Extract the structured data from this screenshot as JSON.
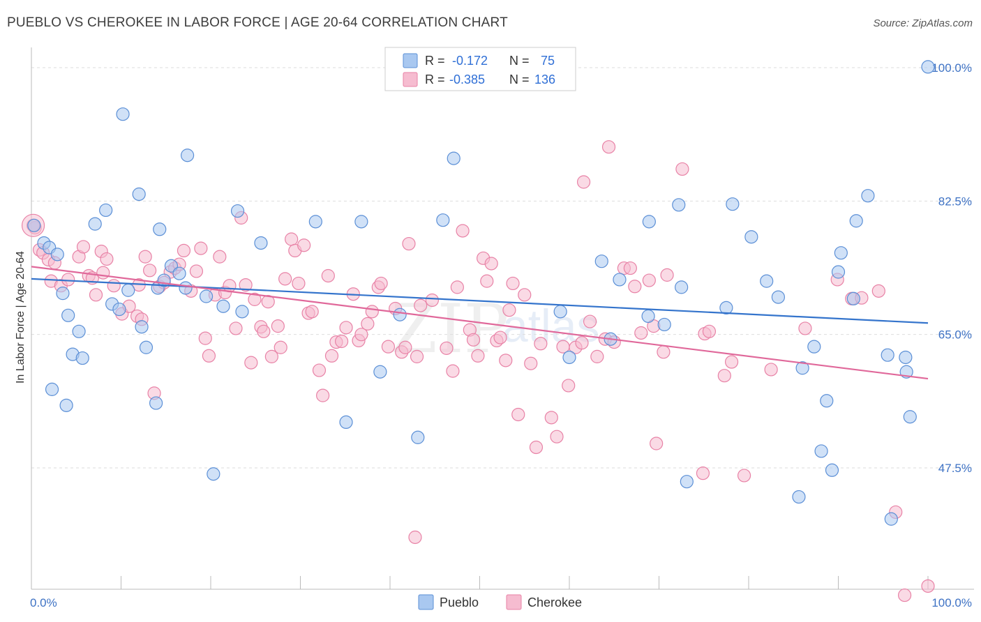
{
  "title": "PUEBLO VS CHEROKEE IN LABOR FORCE | AGE 20-64 CORRELATION CHART",
  "source": "Source: ZipAtlas.com",
  "watermark": {
    "zip": "ZIP",
    "atlas": "atlas"
  },
  "legend_box": {
    "rows": [
      {
        "r_label": "R =",
        "r_value": "-0.172",
        "n_label": "N =",
        "n_value": "75"
      },
      {
        "r_label": "R =",
        "r_value": "-0.385",
        "n_label": "N =",
        "n_value": "136"
      }
    ]
  },
  "bottom_legend": [
    "Pueblo",
    "Cherokee"
  ],
  "colors": {
    "pueblo_fill": "#a9c8f0",
    "pueblo_stroke": "#5b8fd6",
    "pueblo_line": "#3474cc",
    "cherokee_fill": "#f6bcd0",
    "cherokee_stroke": "#e882a6",
    "cherokee_line": "#e0689a",
    "grid": "#dddddd",
    "axis_text": "#3e72c4"
  },
  "chart_data": {
    "type": "scatter",
    "title": "PUEBLO VS CHEROKEE IN LABOR FORCE | AGE 20-64 CORRELATION CHART",
    "xlabel": "",
    "ylabel": "In Labor Force | Age 20-64",
    "xlim": [
      0,
      100
    ],
    "ylim": [
      30,
      102
    ],
    "x_tick_labels": [
      "0.0%",
      "100.0%"
    ],
    "y_ticks": [
      47.5,
      65.0,
      82.5,
      100.0
    ],
    "y_tick_labels": [
      "47.5%",
      "65.0%",
      "82.5%",
      "100.0%"
    ],
    "grid": "horizontal dashed",
    "legend_placement": "top-center",
    "series": [
      {
        "name": "Pueblo",
        "R": -0.172,
        "N": 75,
        "trend": {
          "x": [
            0,
            100
          ],
          "y": [
            72.3,
            66.5
          ]
        },
        "points": [
          [
            0.3,
            79.3
          ],
          [
            1.4,
            77.0
          ],
          [
            2.0,
            76.4
          ],
          [
            2.9,
            75.5
          ],
          [
            3.5,
            70.4
          ],
          [
            4.1,
            67.5
          ],
          [
            5.3,
            65.4
          ],
          [
            4.6,
            62.4
          ],
          [
            5.7,
            61.9
          ],
          [
            2.3,
            57.8
          ],
          [
            3.9,
            55.7
          ],
          [
            7.1,
            79.5
          ],
          [
            8.3,
            81.3
          ],
          [
            9.0,
            69.0
          ],
          [
            9.8,
            68.3
          ],
          [
            10.2,
            93.9
          ],
          [
            10.8,
            70.8
          ],
          [
            12.0,
            83.4
          ],
          [
            12.3,
            66.0
          ],
          [
            12.8,
            63.3
          ],
          [
            13.9,
            56.0
          ],
          [
            14.1,
            71.1
          ],
          [
            14.3,
            78.8
          ],
          [
            14.8,
            72.1
          ],
          [
            15.6,
            74.0
          ],
          [
            16.5,
            73.0
          ],
          [
            17.2,
            71.1
          ],
          [
            17.4,
            88.5
          ],
          [
            19.5,
            70.0
          ],
          [
            20.3,
            46.7
          ],
          [
            21.4,
            68.7
          ],
          [
            23.0,
            81.2
          ],
          [
            23.5,
            68.0
          ],
          [
            25.6,
            77.0
          ],
          [
            31.7,
            79.8
          ],
          [
            35.1,
            53.5
          ],
          [
            36.8,
            79.8
          ],
          [
            38.9,
            60.1
          ],
          [
            41.1,
            67.6
          ],
          [
            43.1,
            51.5
          ],
          [
            45.9,
            80.0
          ],
          [
            47.1,
            88.1
          ],
          [
            59.0,
            68.0
          ],
          [
            60.0,
            62.0
          ],
          [
            63.6,
            74.6
          ],
          [
            64.6,
            64.4
          ],
          [
            65.6,
            72.2
          ],
          [
            68.8,
            67.4
          ],
          [
            68.9,
            79.8
          ],
          [
            70.6,
            66.3
          ],
          [
            72.2,
            82.0
          ],
          [
            72.5,
            71.2
          ],
          [
            73.1,
            45.7
          ],
          [
            77.5,
            68.5
          ],
          [
            78.2,
            82.1
          ],
          [
            80.3,
            77.8
          ],
          [
            82.0,
            72.0
          ],
          [
            83.3,
            69.9
          ],
          [
            85.6,
            43.7
          ],
          [
            86.0,
            60.6
          ],
          [
            87.3,
            63.4
          ],
          [
            88.1,
            49.7
          ],
          [
            88.7,
            56.3
          ],
          [
            89.3,
            47.2
          ],
          [
            90.0,
            73.2
          ],
          [
            90.3,
            75.7
          ],
          [
            91.7,
            69.7
          ],
          [
            92.0,
            79.9
          ],
          [
            93.3,
            83.2
          ],
          [
            95.5,
            62.3
          ],
          [
            95.9,
            40.8
          ],
          [
            97.5,
            62.0
          ],
          [
            98.0,
            54.2
          ],
          [
            97.6,
            60.1
          ],
          [
            100.0,
            100.1
          ]
        ]
      },
      {
        "name": "Cherokee",
        "R": -0.385,
        "N": 136,
        "trend": {
          "x": [
            0,
            100
          ],
          "y": [
            73.9,
            59.2
          ]
        },
        "points": [
          [
            0.4,
            79.0
          ],
          [
            0.9,
            76.1
          ],
          [
            1.3,
            75.7
          ],
          [
            1.9,
            74.8
          ],
          [
            2.2,
            72.0
          ],
          [
            2.6,
            74.4
          ],
          [
            3.3,
            71.4
          ],
          [
            4.1,
            72.2
          ],
          [
            5.3,
            75.2
          ],
          [
            5.8,
            76.5
          ],
          [
            6.4,
            72.7
          ],
          [
            6.8,
            72.4
          ],
          [
            7.2,
            70.2
          ],
          [
            7.8,
            75.9
          ],
          [
            8.0,
            73.1
          ],
          [
            8.4,
            74.9
          ],
          [
            9.2,
            71.4
          ],
          [
            10.1,
            67.7
          ],
          [
            10.9,
            68.7
          ],
          [
            11.8,
            67.4
          ],
          [
            12.0,
            71.5
          ],
          [
            12.3,
            67.0
          ],
          [
            12.7,
            75.2
          ],
          [
            13.2,
            73.4
          ],
          [
            13.7,
            57.3
          ],
          [
            14.3,
            71.3
          ],
          [
            14.8,
            71.8
          ],
          [
            15.5,
            73.2
          ],
          [
            16.0,
            73.7
          ],
          [
            16.5,
            74.2
          ],
          [
            17.0,
            76.0
          ],
          [
            17.8,
            70.7
          ],
          [
            18.4,
            73.3
          ],
          [
            18.9,
            76.3
          ],
          [
            19.4,
            64.5
          ],
          [
            19.8,
            62.2
          ],
          [
            20.5,
            70.2
          ],
          [
            21.0,
            75.2
          ],
          [
            21.6,
            70.5
          ],
          [
            22.1,
            71.4
          ],
          [
            22.8,
            65.8
          ],
          [
            23.4,
            80.3
          ],
          [
            23.9,
            71.5
          ],
          [
            24.5,
            61.3
          ],
          [
            24.9,
            69.6
          ],
          [
            25.6,
            66.0
          ],
          [
            25.9,
            65.4
          ],
          [
            26.4,
            69.3
          ],
          [
            26.8,
            62.1
          ],
          [
            27.5,
            66.1
          ],
          [
            27.8,
            63.3
          ],
          [
            28.3,
            72.3
          ],
          [
            29.0,
            77.5
          ],
          [
            29.4,
            76.0
          ],
          [
            29.8,
            71.7
          ],
          [
            30.4,
            76.7
          ],
          [
            30.9,
            67.8
          ],
          [
            31.3,
            68.0
          ],
          [
            32.1,
            60.3
          ],
          [
            32.5,
            57.0
          ],
          [
            33.1,
            72.7
          ],
          [
            33.5,
            62.2
          ],
          [
            34.0,
            64.0
          ],
          [
            34.6,
            64.1
          ],
          [
            35.1,
            65.9
          ],
          [
            35.9,
            70.3
          ],
          [
            36.5,
            64.2
          ],
          [
            36.8,
            65.0
          ],
          [
            37.5,
            66.4
          ],
          [
            38.0,
            68.0
          ],
          [
            38.7,
            71.2
          ],
          [
            39.0,
            71.7
          ],
          [
            39.8,
            63.4
          ],
          [
            40.6,
            68.4
          ],
          [
            41.3,
            62.7
          ],
          [
            41.7,
            63.3
          ],
          [
            42.1,
            76.9
          ],
          [
            43.0,
            62.1
          ],
          [
            43.4,
            68.8
          ],
          [
            44.7,
            69.5
          ],
          [
            45.4,
            100.0
          ],
          [
            46.3,
            63.2
          ],
          [
            47.0,
            60.2
          ],
          [
            47.5,
            71.2
          ],
          [
            48.1,
            78.6
          ],
          [
            48.9,
            65.6
          ],
          [
            49.3,
            64.3
          ],
          [
            49.8,
            62.2
          ],
          [
            50.4,
            75.0
          ],
          [
            50.8,
            72.0
          ],
          [
            51.3,
            74.3
          ],
          [
            51.9,
            64.2
          ],
          [
            52.3,
            64.6
          ],
          [
            52.9,
            61.6
          ],
          [
            53.3,
            68.2
          ],
          [
            53.7,
            71.7
          ],
          [
            54.3,
            54.5
          ],
          [
            55.0,
            70.2
          ],
          [
            55.7,
            61.2
          ],
          [
            56.3,
            50.2
          ],
          [
            56.8,
            63.8
          ],
          [
            58.0,
            54.1
          ],
          [
            58.6,
            51.6
          ],
          [
            59.3,
            63.4
          ],
          [
            59.9,
            58.3
          ],
          [
            60.7,
            63.3
          ],
          [
            61.4,
            63.9
          ],
          [
            61.6,
            85.0
          ],
          [
            62.3,
            66.7
          ],
          [
            63.1,
            62.1
          ],
          [
            64.0,
            64.4
          ],
          [
            64.4,
            89.6
          ],
          [
            65.0,
            64.0
          ],
          [
            66.1,
            73.7
          ],
          [
            66.8,
            73.7
          ],
          [
            67.3,
            71.3
          ],
          [
            68.0,
            65.2
          ],
          [
            68.9,
            72.1
          ],
          [
            69.4,
            66.1
          ],
          [
            69.7,
            50.7
          ],
          [
            70.5,
            62.7
          ],
          [
            70.9,
            72.8
          ],
          [
            72.6,
            86.7
          ],
          [
            74.9,
            46.8
          ],
          [
            75.1,
            65.1
          ],
          [
            75.6,
            65.4
          ],
          [
            77.3,
            59.6
          ],
          [
            78.1,
            61.4
          ],
          [
            79.5,
            46.5
          ],
          [
            82.5,
            60.4
          ],
          [
            86.3,
            65.8
          ],
          [
            89.9,
            72.2
          ],
          [
            91.5,
            69.7
          ],
          [
            92.6,
            69.8
          ],
          [
            94.5,
            70.7
          ],
          [
            96.4,
            41.7
          ],
          [
            97.4,
            30.8
          ],
          [
            100.0,
            32.0
          ],
          [
            42.8,
            38.4
          ],
          [
            0.2,
            79.3
          ]
        ]
      }
    ]
  }
}
